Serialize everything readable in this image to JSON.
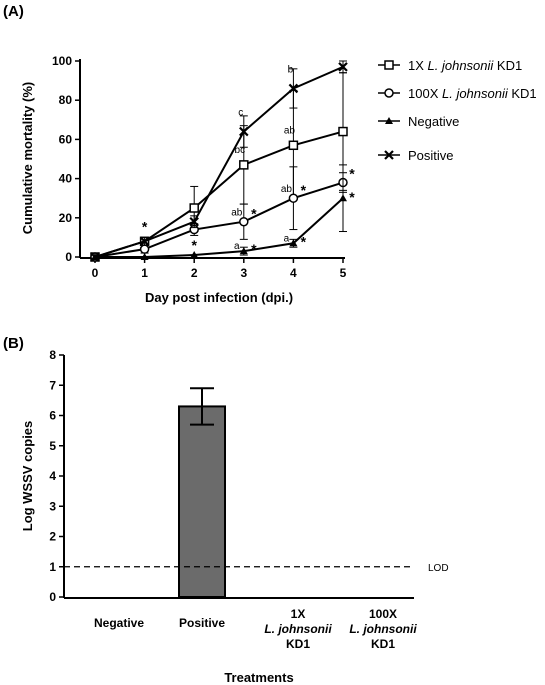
{
  "chart_data": [
    {
      "type": "line",
      "panel_label": "(A)",
      "xlabel": "Day post infection (dpi.)",
      "ylabel": "Cumulative mortality (%)",
      "x": [
        0,
        1,
        2,
        3,
        4,
        5
      ],
      "xlim": [
        0,
        5
      ],
      "ylim": [
        0,
        100
      ],
      "xticks": [
        "0",
        "1",
        "2",
        "3",
        "4",
        "5"
      ],
      "yticks": [
        "0",
        "20",
        "40",
        "60",
        "80",
        "100"
      ],
      "grid": false,
      "legend_position": "right",
      "series": [
        {
          "name_prefix": "1X ",
          "name_italic": "L. johnsonii",
          "name_suffix": " KD1",
          "marker": "square",
          "values": [
            0,
            8,
            25,
            47,
            57,
            64
          ],
          "errors": [
            0,
            2,
            11,
            20,
            28,
            30
          ],
          "annotations": [
            "",
            "",
            "",
            "bc",
            "ab",
            ""
          ],
          "stars": [
            false,
            false,
            false,
            false,
            false,
            false
          ]
        },
        {
          "name_prefix": "100X ",
          "name_italic": "L. johnsonii",
          "name_suffix": " KD1",
          "marker": "circle",
          "values": [
            0,
            4,
            14,
            18,
            30,
            38
          ],
          "errors": [
            0,
            2,
            3,
            9,
            16,
            5
          ],
          "annotations": [
            "",
            "",
            "",
            "ab",
            "ab",
            ""
          ],
          "stars": [
            false,
            false,
            false,
            true,
            true,
            true
          ]
        },
        {
          "name": "Negative",
          "marker": "triangle",
          "values": [
            0,
            0,
            1,
            3,
            7,
            30
          ],
          "errors": [
            0,
            0,
            0,
            2,
            2,
            17
          ],
          "annotations": [
            "",
            "",
            "",
            "a",
            "a",
            ""
          ],
          "stars": [
            false,
            false,
            true,
            true,
            true,
            true
          ]
        },
        {
          "name": "Positive",
          "marker": "x",
          "values": [
            0,
            8,
            18,
            64,
            86,
            97
          ],
          "errors": [
            0,
            2,
            3,
            8,
            10,
            3
          ],
          "annotations": [
            "",
            "",
            "",
            "c",
            "b",
            ""
          ],
          "stars": [
            false,
            true,
            false,
            false,
            false,
            false
          ]
        }
      ]
    },
    {
      "type": "bar",
      "panel_label": "(B)",
      "xlabel": "Treatments",
      "ylabel": "Log WSSV copies",
      "ylim": [
        0,
        8
      ],
      "yticks": [
        "0",
        "1",
        "2",
        "3",
        "4",
        "5",
        "6",
        "7",
        "8"
      ],
      "categories": [
        {
          "lines": [
            "Negative"
          ],
          "italic_line": -1
        },
        {
          "lines": [
            "Positive"
          ],
          "italic_line": -1
        },
        {
          "lines": [
            "1X",
            "L. johnsonii",
            "KD1"
          ],
          "italic_line": 1
        },
        {
          "lines": [
            "100X",
            "L. johnsonii",
            "KD1"
          ],
          "italic_line": 1
        }
      ],
      "values": [
        null,
        6.3,
        null,
        null
      ],
      "errors": [
        null,
        0.6,
        null,
        null
      ],
      "bar_color": "#6b6b6b",
      "reference_line": {
        "value": 1,
        "label": "LOD",
        "style": "dashed"
      }
    }
  ]
}
